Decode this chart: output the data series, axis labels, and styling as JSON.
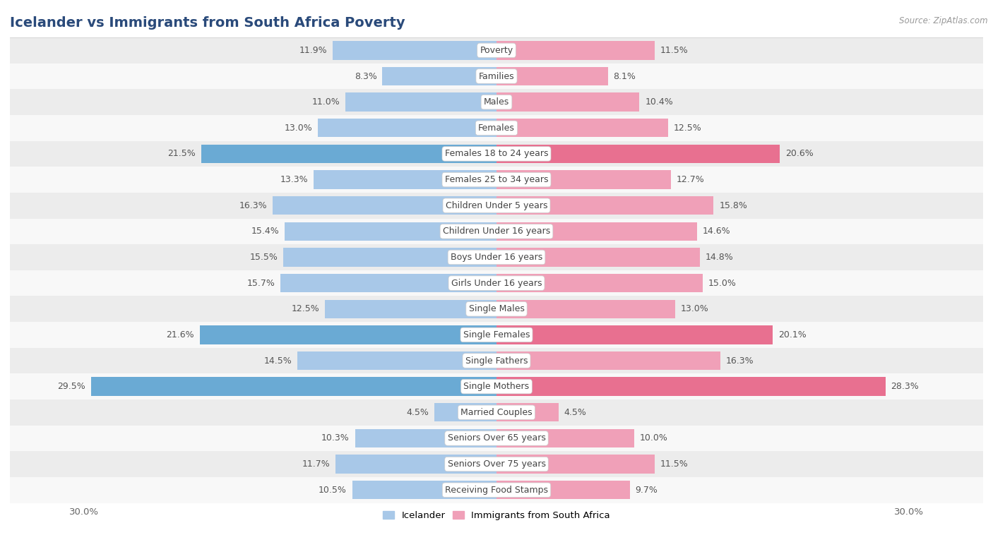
{
  "title": "Icelander vs Immigrants from South Africa Poverty",
  "source": "Source: ZipAtlas.com",
  "categories": [
    "Poverty",
    "Families",
    "Males",
    "Females",
    "Females 18 to 24 years",
    "Females 25 to 34 years",
    "Children Under 5 years",
    "Children Under 16 years",
    "Boys Under 16 years",
    "Girls Under 16 years",
    "Single Males",
    "Single Females",
    "Single Fathers",
    "Single Mothers",
    "Married Couples",
    "Seniors Over 65 years",
    "Seniors Over 75 years",
    "Receiving Food Stamps"
  ],
  "icelander": [
    11.9,
    8.3,
    11.0,
    13.0,
    21.5,
    13.3,
    16.3,
    15.4,
    15.5,
    15.7,
    12.5,
    21.6,
    14.5,
    29.5,
    4.5,
    10.3,
    11.7,
    10.5
  ],
  "immigrants": [
    11.5,
    8.1,
    10.4,
    12.5,
    20.6,
    12.7,
    15.8,
    14.6,
    14.8,
    15.0,
    13.0,
    20.1,
    16.3,
    28.3,
    4.5,
    10.0,
    11.5,
    9.7
  ],
  "icelander_color": "#a8c8e8",
  "immigrants_color": "#f0a0b8",
  "highlight_icelander_color": "#6aaad4",
  "highlight_immigrants_color": "#e87090",
  "background_color": "#ffffff",
  "row_color_even": "#ececec",
  "row_color_odd": "#f8f8f8",
  "max_value": 30.0,
  "label_fontsize": 9.0,
  "title_fontsize": 14,
  "bar_height": 0.72,
  "highlight_threshold": 20.0,
  "legend_labels": [
    "Icelander",
    "Immigrants from South Africa"
  ],
  "title_color": "#2a4a7a",
  "label_color": "#555555",
  "category_color": "#444444"
}
